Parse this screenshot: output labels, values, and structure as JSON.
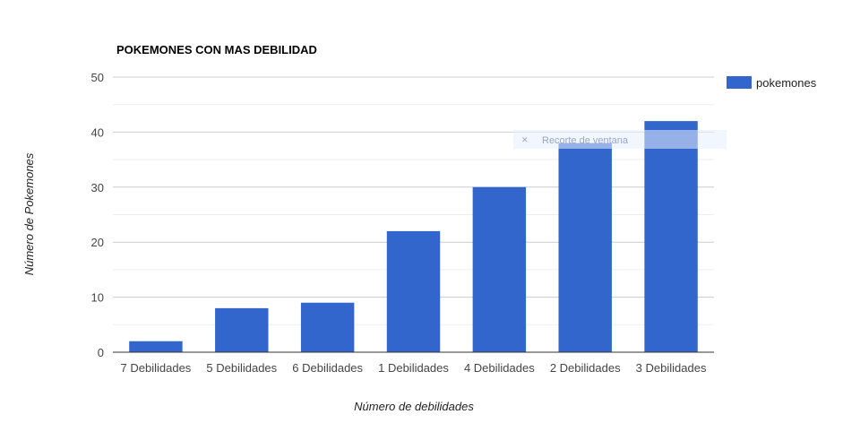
{
  "chart_data": {
    "type": "bar",
    "title": "POKEMONES CON MAS DEBILIDAD",
    "xlabel": "Número de debilidades",
    "ylabel": "Número de Pokemones",
    "categories": [
      "7 Debilidades",
      "5 Debilidades",
      "6 Debilidades",
      "1 Debilidades",
      "4 Debilidades",
      "2 Debilidades",
      "3 Debilidades"
    ],
    "series": [
      {
        "name": "pokemones",
        "values": [
          2,
          8,
          9,
          22,
          30,
          38,
          42
        ],
        "color": "#3366cc"
      }
    ],
    "ylim": [
      0,
      50
    ],
    "yticks": [
      0,
      10,
      20,
      30,
      40,
      50
    ],
    "grid": true,
    "minor_grid": true,
    "legend_position": "right"
  },
  "overlay": {
    "label": "Recorte de ventana",
    "icon": "close-icon"
  }
}
